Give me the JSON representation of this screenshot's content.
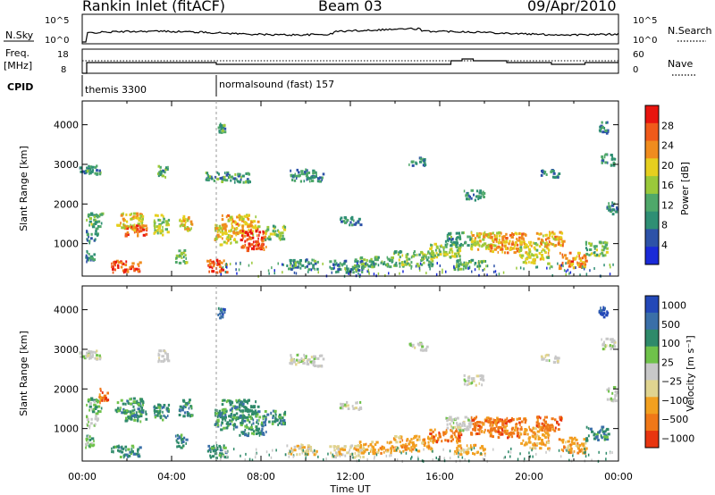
{
  "header": {
    "station": "Rankin Inlet (fitACF)",
    "beam": "Beam 03",
    "date": "09/Apr/2010"
  },
  "status": {
    "nsky_label": "N.Sky",
    "nsearch_label": "N.Search",
    "freq_label": "Freq.",
    "freq_unit": "[MHz]",
    "nave_label": "Nave",
    "cpid_label": "CPID",
    "cpid_modes": [
      {
        "name": "themis 3300",
        "start": 0,
        "end": 6
      },
      {
        "name": "normalsound (fast) 157",
        "start": 6,
        "end": 24
      }
    ],
    "noise_ticks": [
      "10^5",
      "10^0"
    ],
    "nsearch_ticks": [
      "10^5",
      "10^0"
    ],
    "freq_ticks": [
      "18",
      "8"
    ],
    "nave_ticks": [
      "60",
      "0"
    ]
  },
  "colors": {
    "power": [
      "#1a2ad8",
      "#2d52a8",
      "#2f8f74",
      "#4fa86a",
      "#9ac93a",
      "#e6cf1f",
      "#f08c1e",
      "#f05a1a",
      "#e8150f"
    ],
    "velocity": [
      "#2348b8",
      "#3a6fa8",
      "#2f8a6a",
      "#6fc24a",
      "#c8c8c8",
      "#e0d490",
      "#f2a020",
      "#f07818",
      "#e83510"
    ]
  },
  "chart_data": [
    {
      "type": "heatmap",
      "name": "power",
      "xlabel": "",
      "ylabel": "Slant Range [km]",
      "xlim": [
        0,
        24
      ],
      "ylim": [
        180,
        4600
      ],
      "yticks": [
        1000,
        2000,
        3000,
        4000
      ],
      "colorbar": {
        "label": "Power [dB]",
        "ticks": [
          "4",
          "8",
          "12",
          "16",
          "20",
          "24",
          "28"
        ],
        "range": [
          0,
          30
        ]
      },
      "cells": [
        [
          0.3,
          2900,
          1.0,
          250,
          9
        ],
        [
          0.5,
          1600,
          0.7,
          400,
          12
        ],
        [
          0.4,
          1200,
          0.5,
          300,
          8
        ],
        [
          0.3,
          700,
          0.4,
          300,
          8
        ],
        [
          1.9,
          450,
          1.3,
          300,
          27
        ],
        [
          2.1,
          1600,
          1.3,
          400,
          19
        ],
        [
          2.4,
          1350,
          1.0,
          300,
          25
        ],
        [
          3.6,
          2850,
          0.5,
          300,
          10
        ],
        [
          3.5,
          1500,
          0.7,
          500,
          15
        ],
        [
          4.6,
          1550,
          0.6,
          450,
          20
        ],
        [
          4.4,
          700,
          0.5,
          350,
          13
        ],
        [
          6.0,
          450,
          0.9,
          350,
          27
        ],
        [
          6.2,
          3950,
          0.3,
          250,
          9
        ],
        [
          6.4,
          1250,
          1.0,
          500,
          18
        ],
        [
          7.0,
          1500,
          1.7,
          500,
          20
        ],
        [
          7.6,
          1100,
          1.2,
          500,
          28
        ],
        [
          8.6,
          1300,
          0.9,
          350,
          14
        ],
        [
          6.5,
          2700,
          2.0,
          250,
          9
        ],
        [
          10.0,
          2750,
          1.5,
          300,
          8
        ],
        [
          9.8,
          500,
          1.4,
          250,
          9
        ],
        [
          11.8,
          450,
          1.5,
          300,
          8
        ],
        [
          13.0,
          550,
          1.7,
          300,
          11
        ],
        [
          14.8,
          650,
          1.8,
          400,
          13
        ],
        [
          16.2,
          850,
          1.4,
          350,
          15
        ],
        [
          16.8,
          1150,
          1.2,
          350,
          10
        ],
        [
          17.3,
          500,
          1.4,
          250,
          12
        ],
        [
          18.0,
          1100,
          1.3,
          450,
          18
        ],
        [
          19.0,
          1050,
          1.6,
          500,
          22
        ],
        [
          20.2,
          800,
          1.3,
          550,
          17
        ],
        [
          20.9,
          1150,
          1.2,
          350,
          20
        ],
        [
          21.9,
          600,
          1.2,
          400,
          24
        ],
        [
          23.0,
          900,
          1.0,
          350,
          13
        ],
        [
          17.5,
          2250,
          0.9,
          250,
          9
        ],
        [
          23.7,
          1900,
          0.5,
          350,
          8
        ],
        [
          23.5,
          3150,
          0.6,
          300,
          8
        ],
        [
          23.3,
          3950,
          0.4,
          300,
          7
        ],
        [
          20.9,
          2800,
          0.8,
          200,
          7
        ],
        [
          12.0,
          1600,
          1.0,
          200,
          7
        ],
        [
          15.0,
          3100,
          0.8,
          200,
          8
        ]
      ]
    },
    {
      "type": "heatmap",
      "name": "velocity",
      "xlabel": "Time UT",
      "ylabel": "Slant Range [km]",
      "xlim": [
        0,
        24
      ],
      "ylim": [
        180,
        4600
      ],
      "xticks": [
        "00:00",
        "04:00",
        "08:00",
        "12:00",
        "16:00",
        "20:00",
        "00:00"
      ],
      "yticks": [
        1000,
        2000,
        3000,
        4000
      ],
      "colorbar": {
        "label": "Velocity [m s⁻¹]",
        "ticks": [
          "1000",
          "500",
          "100",
          "25",
          "−25",
          "−100",
          "−500",
          "−1000"
        ]
      },
      "cells": [
        [
          0.3,
          2900,
          1.0,
          250,
          4
        ],
        [
          0.5,
          1600,
          0.7,
          400,
          3
        ],
        [
          0.4,
          1200,
          0.5,
          300,
          4
        ],
        [
          0.9,
          1850,
          0.4,
          400,
          7
        ],
        [
          0.3,
          700,
          0.4,
          300,
          3
        ],
        [
          1.9,
          450,
          1.3,
          300,
          2
        ],
        [
          2.1,
          1600,
          1.3,
          400,
          2
        ],
        [
          2.4,
          1350,
          1.0,
          300,
          2
        ],
        [
          3.6,
          2850,
          0.5,
          300,
          4
        ],
        [
          3.5,
          1500,
          0.7,
          500,
          2
        ],
        [
          4.6,
          1550,
          0.6,
          450,
          2
        ],
        [
          4.4,
          700,
          0.5,
          350,
          2
        ],
        [
          6.0,
          450,
          0.9,
          350,
          2
        ],
        [
          6.2,
          3950,
          0.3,
          250,
          1
        ],
        [
          6.4,
          1250,
          1.0,
          500,
          2
        ],
        [
          7.0,
          1500,
          1.7,
          500,
          2
        ],
        [
          7.6,
          1100,
          1.2,
          500,
          2
        ],
        [
          8.6,
          1300,
          0.9,
          350,
          2
        ],
        [
          10.0,
          2750,
          1.5,
          300,
          4
        ],
        [
          9.8,
          500,
          1.4,
          250,
          5
        ],
        [
          11.8,
          450,
          1.5,
          300,
          5
        ],
        [
          13.0,
          550,
          1.7,
          300,
          6
        ],
        [
          14.8,
          650,
          1.8,
          400,
          6
        ],
        [
          16.2,
          850,
          1.4,
          350,
          7
        ],
        [
          16.8,
          1150,
          1.2,
          350,
          4
        ],
        [
          17.3,
          500,
          1.4,
          250,
          6
        ],
        [
          18.0,
          1100,
          1.3,
          450,
          7
        ],
        [
          19.0,
          1050,
          1.6,
          500,
          7
        ],
        [
          20.2,
          800,
          1.3,
          550,
          6
        ],
        [
          20.9,
          1150,
          1.2,
          350,
          7
        ],
        [
          21.9,
          600,
          1.2,
          400,
          6
        ],
        [
          23.0,
          900,
          1.0,
          350,
          2
        ],
        [
          17.5,
          2250,
          0.9,
          250,
          4
        ],
        [
          23.7,
          1900,
          0.5,
          350,
          4
        ],
        [
          23.5,
          3150,
          0.6,
          300,
          4
        ],
        [
          23.3,
          3950,
          0.4,
          300,
          0
        ],
        [
          20.9,
          2800,
          0.8,
          200,
          4
        ],
        [
          12.0,
          1600,
          1.0,
          200,
          4
        ],
        [
          15.0,
          3100,
          0.8,
          200,
          4
        ]
      ]
    }
  ]
}
